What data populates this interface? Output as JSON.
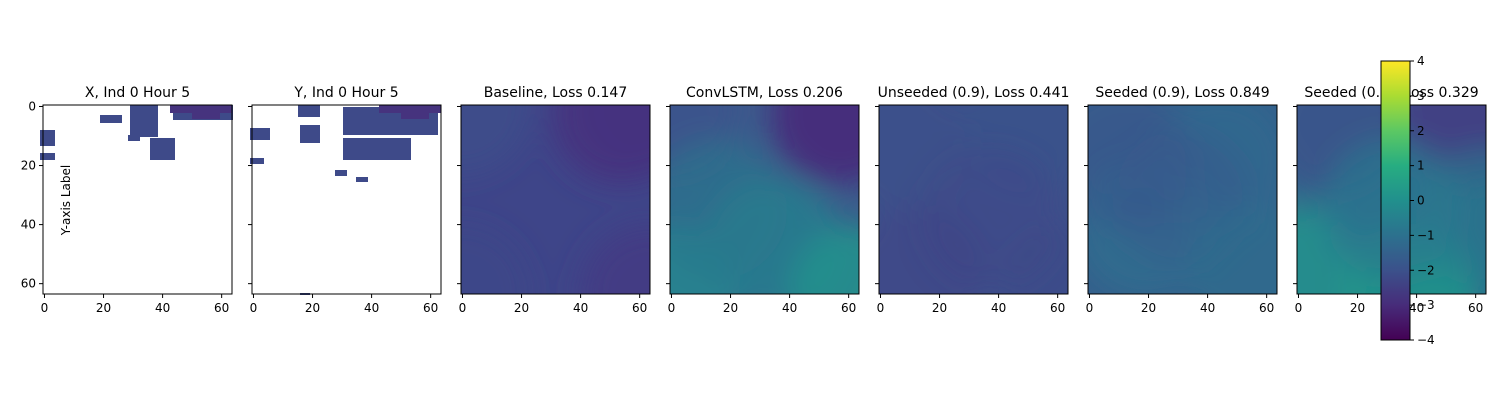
{
  "chart_data": {
    "type": "heatmap",
    "colormap": "viridis",
    "x_ticks": [
      0,
      20,
      40,
      60
    ],
    "y_ticks": [
      0,
      20,
      40,
      60
    ],
    "xlim": [
      -0.5,
      63.5
    ],
    "ylim": [
      63.5,
      -0.5
    ],
    "colorbar": {
      "range": [
        -4,
        4
      ],
      "ticks": [
        4,
        3,
        2,
        1,
        0,
        -1,
        -2,
        -3,
        -4
      ]
    },
    "ylabel": "Y-axis Label",
    "panels": [
      {
        "title": "X, Ind 0 Hour 5",
        "kind": "sparse",
        "loss": null
      },
      {
        "title": "Y, Ind 0 Hour 5",
        "kind": "sparse",
        "loss": null
      },
      {
        "title": "Baseline, Loss 0.147",
        "kind": "field",
        "loss": 0.147
      },
      {
        "title": "ConvLSTM, Loss 0.206",
        "kind": "field",
        "loss": 0.206
      },
      {
        "title": "Unseeded (0.9), Loss 0.441",
        "kind": "field",
        "loss": 0.441
      },
      {
        "title": "Seeded (0.9), Loss 0.849",
        "kind": "field",
        "loss": 0.849
      },
      {
        "title": "Seeded (0.9), Loss 0.329",
        "kind": "field",
        "loss": 0.329
      }
    ]
  }
}
